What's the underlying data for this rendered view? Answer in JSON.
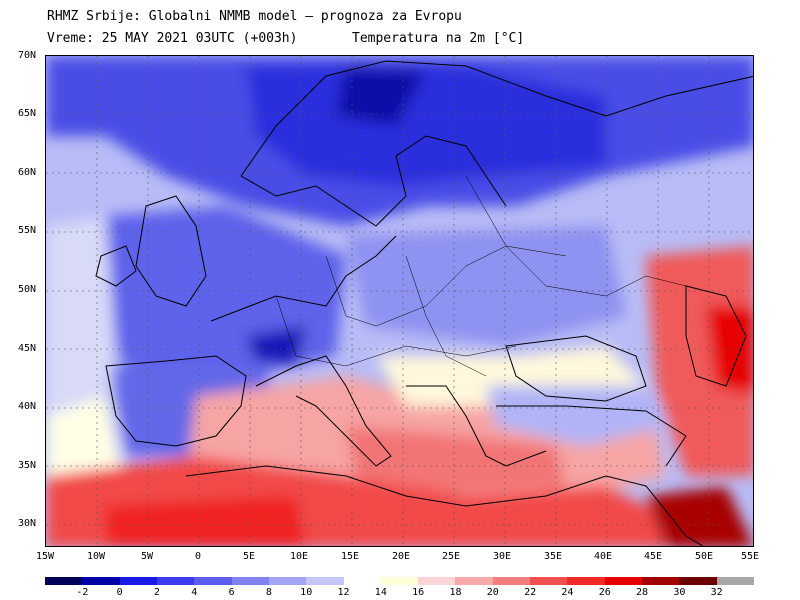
{
  "header": {
    "line1": "RHMZ Srbije: Globalni NMMB model — prognoza za Evropu",
    "line2_left": "Vreme: 25 MAY 2021 03UTC (+003h)",
    "line2_right": "Temperatura na 2m [°C]"
  },
  "axes": {
    "lat_labels": [
      "70N",
      "65N",
      "60N",
      "55N",
      "50N",
      "45N",
      "40N",
      "35N",
      "30N"
    ],
    "lon_labels": [
      "15W",
      "10W",
      "5W",
      "0",
      "5E",
      "10E",
      "15E",
      "20E",
      "25E",
      "30E",
      "35E",
      "40E",
      "45E",
      "50E",
      "55E"
    ]
  },
  "colorbar": {
    "labels": [
      "-2",
      "0",
      "2",
      "4",
      "6",
      "8",
      "10",
      "12",
      "14",
      "16",
      "18",
      "20",
      "22",
      "24",
      "26",
      "28",
      "30",
      "32"
    ],
    "colors": [
      "#00005a",
      "#0000a8",
      "#1a1ae6",
      "#3c3cf0",
      "#5c5cee",
      "#8080f0",
      "#a4a4f4",
      "#c6c6f8",
      "#ffffff",
      "#ffffd8",
      "#fcd6d6",
      "#f8aaaa",
      "#f47e7e",
      "#f05050",
      "#f02828",
      "#e60000",
      "#a00000",
      "#6a0000",
      "#a8a8a8"
    ]
  },
  "map": {
    "background_color": "#b8bcf6",
    "grid": true,
    "field": "2m temperature",
    "regions": [
      {
        "name": "north-sea-cold",
        "color": "#5e62e8"
      },
      {
        "name": "scandinavia-cold",
        "color": "#2a2ee0"
      },
      {
        "name": "mediterranean-warm",
        "color": "#f47e7e"
      },
      {
        "name": "north-africa-hot",
        "color": "#f02828"
      },
      {
        "name": "caspian-hot",
        "color": "#e60000"
      }
    ]
  }
}
